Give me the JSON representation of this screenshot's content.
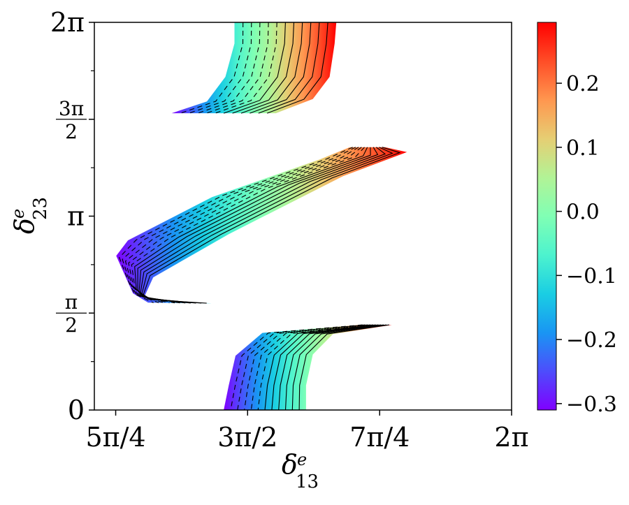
{
  "chart_data": {
    "type": "heatmap",
    "title": "",
    "xlabel": "δ",
    "xlabel_sub": "13",
    "xlabel_sup": "e",
    "ylabel": "δ",
    "ylabel_sub": "23",
    "ylabel_sup": "e",
    "xlim": [
      3.8,
      6.283
    ],
    "ylim": [
      0,
      6.283
    ],
    "x_ticks": [
      {
        "value": 3.927,
        "label": "5π/4"
      },
      {
        "value": 4.712,
        "label": "3π/2"
      },
      {
        "value": 5.498,
        "label": "7π/4"
      },
      {
        "value": 6.283,
        "label": "2π"
      }
    ],
    "y_ticks": [
      {
        "value": 0,
        "label": "0"
      },
      {
        "value": 1.571,
        "label": "π/2",
        "fraction": true,
        "num": "π",
        "den": "2"
      },
      {
        "value": 3.142,
        "label": "π"
      },
      {
        "value": 4.712,
        "label": "3π/2",
        "fraction": true,
        "num": "3π",
        "den": "2"
      },
      {
        "value": 6.283,
        "label": "2π"
      }
    ],
    "colorbar": {
      "colormap": "rainbow",
      "min": -0.31,
      "max": 0.295,
      "ticks": [
        {
          "value": -0.3,
          "label": "−0.3"
        },
        {
          "value": -0.2,
          "label": "−0.2"
        },
        {
          "value": -0.1,
          "label": "−0.1"
        },
        {
          "value": 0.0,
          "label": "0.0"
        },
        {
          "value": 0.1,
          "label": "0.1"
        },
        {
          "value": 0.2,
          "label": "0.2"
        }
      ]
    },
    "contour_levels": [
      -0.25,
      -0.2,
      -0.15,
      -0.1,
      -0.05,
      0.0,
      0.05,
      0.1,
      0.15,
      0.2,
      0.25
    ],
    "contour_styles": [
      "dashed",
      "dashed",
      "dashed",
      "dashed",
      "dashed",
      "solid",
      "solid",
      "solid",
      "solid",
      "solid",
      "solid"
    ],
    "regions": [
      {
        "name": "top band",
        "left_edge": [
          [
            4.634,
            6.283
          ],
          [
            4.634,
            5.94
          ],
          [
            4.58,
            5.4
          ],
          [
            4.47,
            5.0
          ],
          [
            4.26,
            4.81
          ]
        ],
        "right_edge": [
          [
            5.24,
            6.283
          ],
          [
            5.23,
            5.94
          ],
          [
            5.2,
            5.4
          ],
          [
            5.1,
            5.04
          ],
          [
            4.88,
            4.81
          ]
        ]
      },
      {
        "name": "middle band",
        "left_edge": [
          [
            5.32,
            4.26
          ],
          [
            5.14,
            4.06
          ],
          [
            4.5,
            3.45
          ],
          [
            4.0,
            2.75
          ],
          [
            3.93,
            2.5
          ],
          [
            4.0,
            2.07
          ],
          [
            4.03,
            1.89
          ],
          [
            4.12,
            1.74
          ]
        ],
        "right_edge": [
          [
            5.53,
            4.26
          ],
          [
            5.66,
            4.18
          ],
          [
            5.28,
            3.79
          ],
          [
            4.6,
            2.85
          ],
          [
            4.15,
            2.15
          ],
          [
            4.1,
            1.85
          ],
          [
            4.15,
            1.78
          ],
          [
            4.5,
            1.73
          ]
        ]
      },
      {
        "name": "bottom band",
        "left_edge": [
          [
            5.38,
            1.38
          ],
          [
            4.8,
            1.25
          ],
          [
            4.64,
            0.88
          ],
          [
            4.6,
            0.4
          ],
          [
            4.57,
            0.0
          ]
        ],
        "right_edge": [
          [
            5.57,
            1.38
          ],
          [
            5.22,
            1.23
          ],
          [
            5.1,
            0.9
          ],
          [
            5.06,
            0.4
          ],
          [
            5.06,
            0.0
          ]
        ]
      }
    ]
  }
}
